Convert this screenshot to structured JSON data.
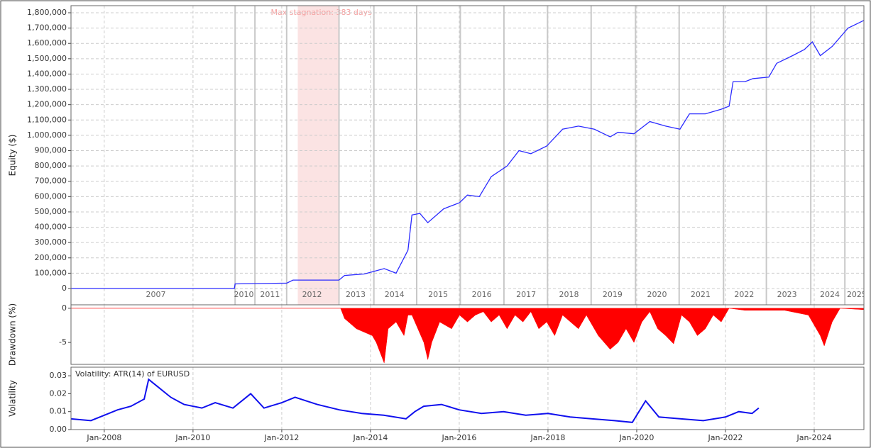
{
  "chart_data": [
    {
      "type": "line",
      "ylabel": "Equity ($)",
      "color": "#2b2bff",
      "grid": true,
      "x": [
        0,
        20.6,
        20.7,
        27.2,
        28,
        33.8,
        34.5,
        37,
        39.5,
        41,
        42.5,
        43,
        44,
        45,
        47,
        49,
        50,
        51.5,
        53,
        55,
        56.5,
        58,
        60,
        62,
        64,
        66,
        68,
        69,
        71,
        73,
        75,
        76.8,
        78,
        80,
        82,
        83,
        83.5,
        85,
        86,
        88,
        89,
        91,
        92.5,
        93.5,
        94.5,
        96,
        98,
        100
      ],
      "values": [
        0,
        0,
        30000,
        35000,
        55000,
        55000,
        85000,
        95000,
        130000,
        100000,
        250000,
        480000,
        490000,
        430000,
        520000,
        560000,
        610000,
        600000,
        730000,
        800000,
        900000,
        880000,
        930000,
        1040000,
        1060000,
        1040000,
        990000,
        1020000,
        1010000,
        1090000,
        1060000,
        1040000,
        1140000,
        1140000,
        1170000,
        1190000,
        1350000,
        1350000,
        1370000,
        1380000,
        1470000,
        1520000,
        1560000,
        1610000,
        1520000,
        1580000,
        1700000,
        1750000
      ],
      "xlim": [
        0,
        100
      ],
      "ylim": [
        0,
        1800000
      ],
      "yticks": [
        0,
        {
          "value": 100000,
          "label": "100,000"
        },
        {
          "value": 200000,
          "label": "200,000"
        },
        {
          "value": 300000,
          "label": "300,000"
        },
        {
          "value": 400000,
          "label": "400,000"
        },
        {
          "value": 500000,
          "label": "500,000"
        },
        {
          "value": 600000,
          "label": "600,000"
        },
        {
          "value": 700000,
          "label": "700,000"
        },
        {
          "value": 800000,
          "label": "800,000"
        },
        {
          "value": 900000,
          "label": "900,000"
        },
        {
          "value": 1000000,
          "label": "1,000,000"
        },
        {
          "value": 1100000,
          "label": "1,100,000"
        },
        {
          "value": 1200000,
          "label": "1,200,000"
        },
        {
          "value": 1300000,
          "label": "1,300,000"
        },
        {
          "value": 1400000,
          "label": "1,400,000"
        },
        {
          "value": 1500000,
          "label": "1,500,000"
        },
        {
          "value": 1600000,
          "label": "1,600,000"
        },
        {
          "value": 1700000,
          "label": "1,700,000"
        },
        {
          "value": 1800000,
          "label": "1,800,000"
        }
      ],
      "xticks": [
        {
          "value": 10.7,
          "label": "2007"
        },
        {
          "value": 21.8,
          "label": "2010"
        },
        {
          "value": 25.1,
          "label": "2011"
        },
        {
          "value": 30.4,
          "label": "2012"
        },
        {
          "value": 35.9,
          "label": "2013"
        },
        {
          "value": 40.8,
          "label": "2014"
        },
        {
          "value": 46.3,
          "label": "2015"
        },
        {
          "value": 51.8,
          "label": "2016"
        },
        {
          "value": 57.4,
          "label": "2017"
        },
        {
          "value": 62.8,
          "label": "2018"
        },
        {
          "value": 68.3,
          "label": "2019"
        },
        {
          "value": 73.9,
          "label": "2020"
        },
        {
          "value": 79.4,
          "label": "2021"
        },
        {
          "value": 84.9,
          "label": "2022"
        },
        {
          "value": 90.3,
          "label": "2023"
        },
        {
          "value": 95.7,
          "label": "2024"
        },
        {
          "value": 99.1,
          "label": "2025"
        }
      ],
      "xbounds": [
        20.7,
        23.2,
        27.2,
        33.8,
        38.2,
        43.6,
        49.1,
        54.6,
        60.1,
        65.6,
        71.2,
        76.7,
        82.3,
        87.7,
        93.3,
        97.6
      ],
      "shade": {
        "x": [
          28.6,
          33.8
        ],
        "label": "Max stagnation: 383 days",
        "color": "#fbe3e3"
      }
    },
    {
      "type": "area",
      "ylabel": "Drawdown (%)",
      "color": "#ff0000",
      "x": [
        0,
        34,
        34.5,
        36,
        38,
        38.5,
        39.5,
        40,
        41,
        42,
        42.5,
        43,
        44.5,
        45,
        45.5,
        46.5,
        48,
        49,
        50,
        51,
        52,
        53,
        54,
        55,
        56,
        57,
        58,
        59,
        60,
        61,
        62,
        63,
        64,
        65,
        66.5,
        68,
        69,
        70,
        71,
        72,
        73,
        74,
        75,
        76,
        77,
        78,
        79,
        80,
        81,
        82,
        83,
        85,
        90,
        93,
        94.5,
        95,
        96,
        97,
        100
      ],
      "values": [
        0,
        0,
        -1.5,
        -3,
        -4,
        -5,
        -8,
        -3,
        -2,
        -4,
        -1,
        -1,
        -5,
        -7.5,
        -5,
        -2,
        -3,
        -1,
        -2,
        -1,
        -0.5,
        -2,
        -1,
        -3,
        -1,
        -2,
        -0.5,
        -3,
        -2,
        -4,
        -1,
        -2,
        -3,
        -1,
        -4,
        -6,
        -5,
        -3,
        -5,
        -2,
        -0.5,
        -3,
        -4,
        -5.2,
        -1,
        -2,
        -4,
        -3,
        -1,
        -2,
        0,
        -0.3,
        -0.3,
        -1,
        -4,
        -5.5,
        -2,
        0,
        -0.2
      ],
      "xlim": [
        0,
        100
      ],
      "ylim": [
        -8.2,
        0.3
      ],
      "yticks": [
        0,
        -5
      ]
    },
    {
      "type": "line",
      "ylabel": "Volatility",
      "legend": "Volatility: ATR(14) of EURUSD",
      "color": "#1010ee",
      "x": [
        2007.25,
        2007.7,
        2008,
        2008.3,
        2008.6,
        2008.9,
        2009.0,
        2009.2,
        2009.5,
        2009.8,
        2010.2,
        2010.5,
        2010.9,
        2011.3,
        2011.6,
        2012,
        2012.3,
        2012.8,
        2013.3,
        2013.8,
        2014.3,
        2014.8,
        2015.0,
        2015.2,
        2015.6,
        2016.0,
        2016.5,
        2017,
        2017.5,
        2018,
        2018.5,
        2019,
        2019.5,
        2019.9,
        2020.2,
        2020.5,
        2021,
        2021.5,
        2022,
        2022.3,
        2022.6,
        2022.75
      ],
      "values": [
        0.006,
        0.005,
        0.008,
        0.011,
        0.013,
        0.017,
        0.028,
        0.024,
        0.018,
        0.014,
        0.012,
        0.015,
        0.012,
        0.02,
        0.012,
        0.015,
        0.018,
        0.014,
        0.011,
        0.009,
        0.008,
        0.006,
        0.01,
        0.013,
        0.014,
        0.011,
        0.009,
        0.01,
        0.008,
        0.009,
        0.007,
        0.006,
        0.005,
        0.004,
        0.016,
        0.007,
        0.006,
        0.005,
        0.007,
        0.01,
        0.009,
        0.012
      ],
      "xlim": [
        2007.25,
        2025.12
      ],
      "ylim": [
        0,
        0.034
      ],
      "yticks": [
        {
          "value": 0,
          "label": "0.00"
        },
        0.01,
        0.02,
        0.03
      ],
      "xticks": [
        {
          "value": 2008,
          "label": "Jan-2008"
        },
        {
          "value": 2010,
          "label": "Jan-2010"
        },
        {
          "value": 2012,
          "label": "Jan-2012"
        },
        {
          "value": 2014,
          "label": "Jan-2014"
        },
        {
          "value": 2016,
          "label": "Jan-2016"
        },
        {
          "value": 2018,
          "label": "Jan-2018"
        },
        {
          "value": 2020,
          "label": "Jan-2020"
        },
        {
          "value": 2022,
          "label": "Jan-2022"
        },
        {
          "value": 2024,
          "label": "Jan-2024"
        }
      ]
    }
  ]
}
